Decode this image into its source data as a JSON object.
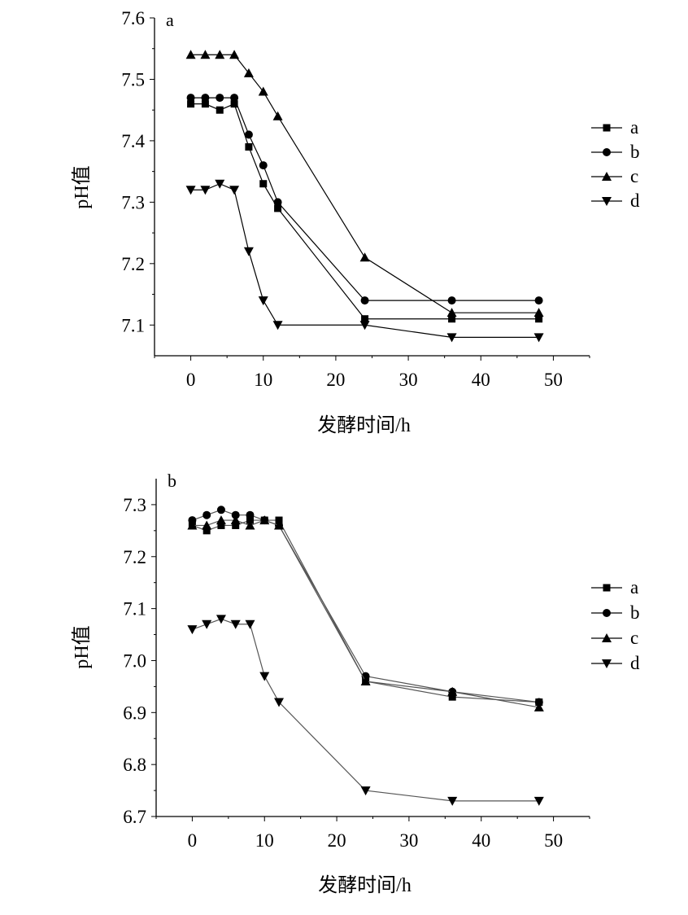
{
  "chart_data": [
    {
      "type": "line",
      "panel_label": "a",
      "xlabel": "发酵时间/h",
      "ylabel": "pH值",
      "xlim": [
        -5,
        55
      ],
      "ylim": [
        7.05,
        7.6
      ],
      "xticks": [
        0,
        10,
        20,
        30,
        40,
        50
      ],
      "yticks": [
        7.1,
        7.2,
        7.3,
        7.4,
        7.5,
        7.6
      ],
      "ytick_labels": [
        "7.1",
        "7.2",
        "7.3",
        "7.4",
        "7.5",
        "7.6"
      ],
      "legend_position": "right",
      "x": [
        0,
        2,
        4,
        6,
        8,
        10,
        12,
        24,
        36,
        48
      ],
      "series": [
        {
          "name": "a",
          "marker": "square",
          "values": [
            7.46,
            7.46,
            7.45,
            7.46,
            7.39,
            7.33,
            7.29,
            7.11,
            7.11,
            7.11
          ]
        },
        {
          "name": "b",
          "marker": "circle",
          "values": [
            7.47,
            7.47,
            7.47,
            7.47,
            7.41,
            7.36,
            7.3,
            7.14,
            7.14,
            7.14
          ]
        },
        {
          "name": "c",
          "marker": "triangle-up",
          "values": [
            7.54,
            7.54,
            7.54,
            7.54,
            7.51,
            7.48,
            7.44,
            7.21,
            7.12,
            7.12
          ]
        },
        {
          "name": "d",
          "marker": "triangle-down",
          "values": [
            7.32,
            7.32,
            7.33,
            7.32,
            7.22,
            7.14,
            7.1,
            7.1,
            7.08,
            7.08
          ]
        }
      ]
    },
    {
      "type": "line",
      "panel_label": "b",
      "xlabel": "发酵时间/h",
      "ylabel": "pH值",
      "xlim": [
        -5,
        55
      ],
      "ylim": [
        6.7,
        7.35
      ],
      "xticks": [
        0,
        10,
        20,
        30,
        40,
        50
      ],
      "yticks": [
        6.7,
        6.8,
        6.9,
        7.0,
        7.1,
        7.2,
        7.3
      ],
      "ytick_labels": [
        "6.7",
        "6.8",
        "6.9",
        "7.0",
        "7.1",
        "7.2",
        "7.3"
      ],
      "legend_position": "right",
      "x": [
        0,
        2,
        4,
        6,
        8,
        10,
        12,
        24,
        36,
        48
      ],
      "series": [
        {
          "name": "a",
          "marker": "square",
          "values": [
            7.26,
            7.25,
            7.26,
            7.26,
            7.27,
            7.27,
            7.27,
            6.96,
            6.93,
            6.92
          ]
        },
        {
          "name": "b",
          "marker": "circle",
          "values": [
            7.27,
            7.28,
            7.29,
            7.28,
            7.28,
            7.27,
            7.26,
            6.97,
            6.94,
            6.92
          ]
        },
        {
          "name": "c",
          "marker": "triangle-up",
          "values": [
            7.26,
            7.26,
            7.27,
            7.27,
            7.26,
            7.27,
            7.26,
            6.96,
            6.94,
            6.91
          ]
        },
        {
          "name": "d",
          "marker": "triangle-down",
          "values": [
            7.06,
            7.07,
            7.08,
            7.07,
            7.07,
            6.97,
            6.92,
            6.75,
            6.73,
            6.73
          ]
        }
      ]
    }
  ],
  "colors": {
    "axis": "#000000",
    "line_a": "#000000",
    "line_b": "#555555"
  }
}
